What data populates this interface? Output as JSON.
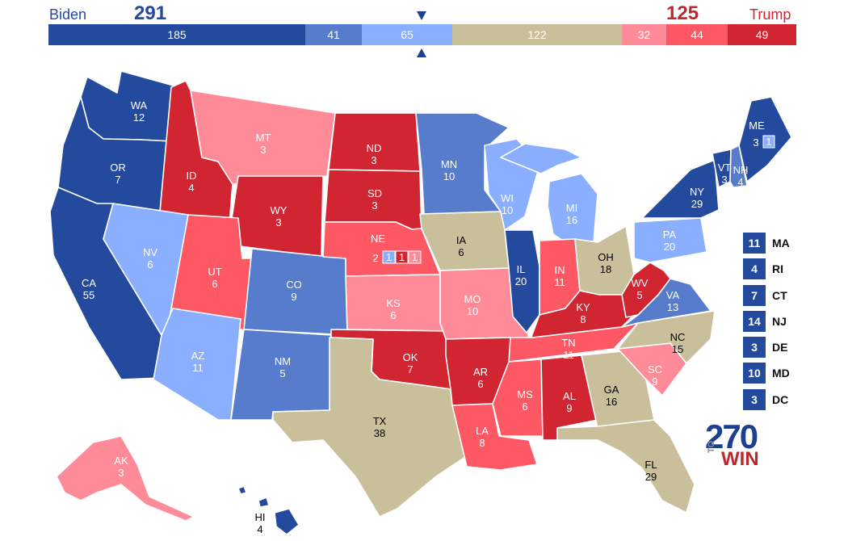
{
  "header": {
    "dem_name": "Biden",
    "dem_total": "291",
    "rep_name": "Trump",
    "rep_total": "125",
    "segments": [
      {
        "value": "185",
        "color": "#244a9d"
      },
      {
        "value": "41",
        "color": "#577ccc"
      },
      {
        "value": "65",
        "color": "#8aafff"
      },
      {
        "value": "122",
        "color": "#c9c09b"
      },
      {
        "value": "32",
        "color": "#ff8b98"
      },
      {
        "value": "44",
        "color": "#ff5865"
      },
      {
        "value": "49",
        "color": "#d22532"
      }
    ]
  },
  "colors": {
    "safe_dem": "#244a9d",
    "likely_dem": "#577ccc",
    "lean_dem": "#8aafff",
    "tossup": "#c9c09b",
    "lean_rep": "#ff8b98",
    "likely_rep": "#ff5865",
    "safe_rep": "#d22532"
  },
  "states": [
    {
      "abbr": "WA",
      "ev": "12",
      "rating": "safe_dem"
    },
    {
      "abbr": "OR",
      "ev": "7",
      "rating": "safe_dem"
    },
    {
      "abbr": "CA",
      "ev": "55",
      "rating": "safe_dem"
    },
    {
      "abbr": "ID",
      "ev": "4",
      "rating": "safe_rep"
    },
    {
      "abbr": "NV",
      "ev": "6",
      "rating": "lean_dem"
    },
    {
      "abbr": "MT",
      "ev": "3",
      "rating": "lean_rep"
    },
    {
      "abbr": "WY",
      "ev": "3",
      "rating": "safe_rep"
    },
    {
      "abbr": "UT",
      "ev": "6",
      "rating": "likely_rep"
    },
    {
      "abbr": "AZ",
      "ev": "11",
      "rating": "lean_dem"
    },
    {
      "abbr": "CO",
      "ev": "9",
      "rating": "likely_dem"
    },
    {
      "abbr": "NM",
      "ev": "5",
      "rating": "likely_dem"
    },
    {
      "abbr": "ND",
      "ev": "3",
      "rating": "safe_rep"
    },
    {
      "abbr": "SD",
      "ev": "3",
      "rating": "safe_rep"
    },
    {
      "abbr": "NE",
      "ev": "2",
      "rating": "likely_rep"
    },
    {
      "abbr": "KS",
      "ev": "6",
      "rating": "lean_rep"
    },
    {
      "abbr": "OK",
      "ev": "7",
      "rating": "safe_rep"
    },
    {
      "abbr": "TX",
      "ev": "38",
      "rating": "tossup"
    },
    {
      "abbr": "MN",
      "ev": "10",
      "rating": "likely_dem"
    },
    {
      "abbr": "IA",
      "ev": "6",
      "rating": "tossup"
    },
    {
      "abbr": "MO",
      "ev": "10",
      "rating": "lean_rep"
    },
    {
      "abbr": "AR",
      "ev": "6",
      "rating": "safe_rep"
    },
    {
      "abbr": "LA",
      "ev": "8",
      "rating": "likely_rep"
    },
    {
      "abbr": "WI",
      "ev": "10",
      "rating": "lean_dem"
    },
    {
      "abbr": "IL",
      "ev": "20",
      "rating": "safe_dem"
    },
    {
      "abbr": "MI",
      "ev": "16",
      "rating": "lean_dem"
    },
    {
      "abbr": "IN",
      "ev": "11",
      "rating": "likely_rep"
    },
    {
      "abbr": "OH",
      "ev": "18",
      "rating": "tossup"
    },
    {
      "abbr": "KY",
      "ev": "8",
      "rating": "safe_rep"
    },
    {
      "abbr": "TN",
      "ev": "11",
      "rating": "likely_rep"
    },
    {
      "abbr": "MS",
      "ev": "6",
      "rating": "likely_rep"
    },
    {
      "abbr": "AL",
      "ev": "9",
      "rating": "safe_rep"
    },
    {
      "abbr": "GA",
      "ev": "16",
      "rating": "tossup"
    },
    {
      "abbr": "FL",
      "ev": "29",
      "rating": "tossup"
    },
    {
      "abbr": "SC",
      "ev": "9",
      "rating": "lean_rep"
    },
    {
      "abbr": "NC",
      "ev": "15",
      "rating": "tossup"
    },
    {
      "abbr": "VA",
      "ev": "13",
      "rating": "likely_dem"
    },
    {
      "abbr": "WV",
      "ev": "5",
      "rating": "safe_rep"
    },
    {
      "abbr": "PA",
      "ev": "20",
      "rating": "lean_dem"
    },
    {
      "abbr": "NY",
      "ev": "29",
      "rating": "safe_dem"
    },
    {
      "abbr": "VT",
      "ev": "3",
      "rating": "safe_dem"
    },
    {
      "abbr": "NH",
      "ev": "4",
      "rating": "likely_dem"
    },
    {
      "abbr": "ME",
      "ev": "3",
      "rating": "safe_dem"
    },
    {
      "abbr": "AK",
      "ev": "3",
      "rating": "lean_rep"
    },
    {
      "abbr": "HI",
      "ev": "4",
      "rating": "safe_dem"
    }
  ],
  "district_boxes": {
    "me": [
      "1"
    ],
    "ne": [
      "1",
      "1",
      "1"
    ]
  },
  "small_states": [
    {
      "abbr": "MA",
      "ev": "11"
    },
    {
      "abbr": "RI",
      "ev": "4"
    },
    {
      "abbr": "CT",
      "ev": "7"
    },
    {
      "abbr": "NJ",
      "ev": "14"
    },
    {
      "abbr": "DE",
      "ev": "3"
    },
    {
      "abbr": "MD",
      "ev": "10"
    },
    {
      "abbr": "DC",
      "ev": "3"
    }
  ],
  "logo": {
    "number": "270",
    "to": "TO",
    "win": "WIN"
  }
}
